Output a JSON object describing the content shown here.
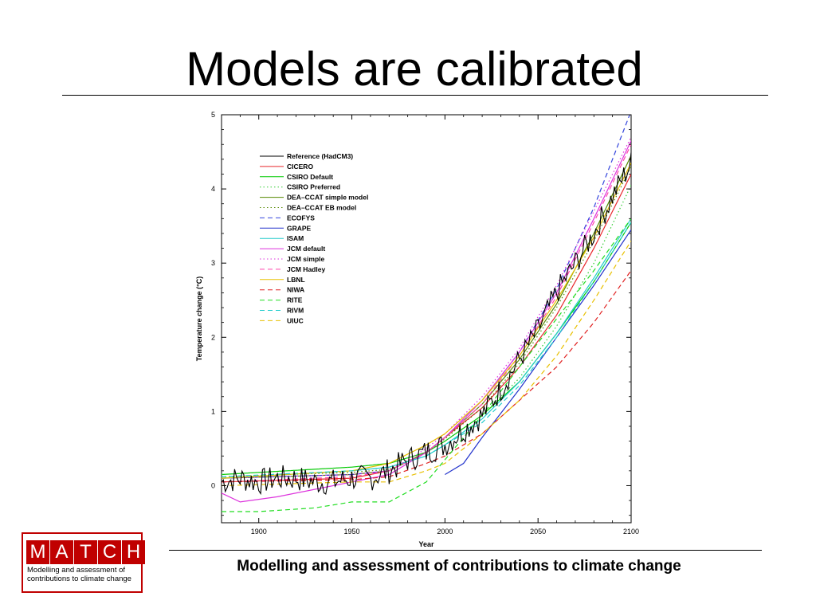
{
  "slide": {
    "title": "Models are calibrated",
    "footer": "Modelling and assessment of contributions to climate change"
  },
  "logo": {
    "letters": [
      "M",
      "A",
      "T",
      "C",
      "H"
    ],
    "subtitle": "Modelling and assessment of contributions to climate change",
    "color": "#c00000"
  },
  "chart_data": {
    "type": "line",
    "title": "",
    "xlabel": "Year",
    "ylabel": "Temperature change (°C)",
    "xlim": [
      1880,
      2100
    ],
    "ylim": [
      -0.5,
      5
    ],
    "x_ticks": [
      1900,
      1950,
      2000,
      2050,
      2100
    ],
    "y_ticks": [
      0,
      1,
      2,
      3,
      4,
      5
    ],
    "grid": false,
    "legend_position": "top-left",
    "series": [
      {
        "name": "Reference (HadCM3)",
        "color": "#000000",
        "dash": "solid",
        "noisy": true,
        "x": [
          1880,
          1890,
          1900,
          1910,
          1920,
          1930,
          1940,
          1950,
          1960,
          1970,
          1980,
          1990,
          2000,
          2010,
          2020,
          2030,
          2040,
          2050,
          2060,
          2070,
          2080,
          2090,
          2100
        ],
        "y": [
          0.05,
          0.1,
          0.05,
          0.1,
          0.1,
          0.05,
          0.05,
          0.1,
          0.1,
          0.2,
          0.35,
          0.45,
          0.55,
          0.75,
          0.95,
          1.3,
          1.7,
          2.1,
          2.6,
          3.0,
          3.4,
          3.9,
          4.35
        ]
      },
      {
        "name": "CICERO",
        "color": "#e8272c",
        "dash": "solid",
        "x": [
          1880,
          1950,
          1970,
          1990,
          2000,
          2020,
          2040,
          2060,
          2080,
          2100
        ],
        "y": [
          0.05,
          0.1,
          0.2,
          0.45,
          0.65,
          1.05,
          1.6,
          2.3,
          3.2,
          4.2
        ]
      },
      {
        "name": "CSIRO Default",
        "color": "#00cc00",
        "dash": "solid",
        "x": [
          1880,
          1950,
          1970,
          1990,
          2000,
          2020,
          2040,
          2060,
          2080,
          2100
        ],
        "y": [
          0.15,
          0.25,
          0.3,
          0.45,
          0.6,
          0.95,
          1.4,
          2.05,
          2.75,
          3.55
        ]
      },
      {
        "name": "CSIRO Preferred",
        "color": "#33cc33",
        "dash": "dotted",
        "x": [
          1880,
          1950,
          1970,
          1990,
          2000,
          2020,
          2040,
          2060,
          2080,
          2100
        ],
        "y": [
          0.15,
          0.25,
          0.3,
          0.45,
          0.6,
          0.95,
          1.45,
          2.15,
          3.0,
          4.05
        ]
      },
      {
        "name": "DEA–CCAT simple model",
        "color": "#558800",
        "dash": "solid",
        "x": [
          1880,
          1950,
          1970,
          1990,
          2000,
          2020,
          2040,
          2060,
          2080,
          2100
        ],
        "y": [
          0.1,
          0.15,
          0.2,
          0.45,
          0.65,
          1.1,
          1.7,
          2.45,
          3.4,
          4.45
        ]
      },
      {
        "name": "DEA–CCAT EB model",
        "color": "#558800",
        "dash": "dotted",
        "x": [
          1880,
          1950,
          1970,
          1990,
          2000,
          2020,
          2040,
          2060,
          2080,
          2100
        ],
        "y": [
          0.12,
          0.18,
          0.22,
          0.45,
          0.63,
          1.05,
          1.65,
          2.4,
          3.3,
          4.3
        ]
      },
      {
        "name": "ECOFYS",
        "color": "#3344dd",
        "dash": "dashed",
        "x": [
          1880,
          1950,
          1970,
          1990,
          2000,
          2020,
          2040,
          2060,
          2080,
          2100
        ],
        "y": [
          0.1,
          0.15,
          0.2,
          0.45,
          0.65,
          1.15,
          1.8,
          2.65,
          3.75,
          5.05
        ]
      },
      {
        "name": "GRAPE",
        "color": "#2233cc",
        "dash": "solid",
        "x": [
          2000,
          2010,
          2020,
          2040,
          2060,
          2080,
          2100
        ],
        "y": [
          0.15,
          0.3,
          0.65,
          1.3,
          2.0,
          2.7,
          3.45
        ]
      },
      {
        "name": "ISAM",
        "color": "#22cccc",
        "dash": "solid",
        "x": [
          1880,
          1950,
          1970,
          1990,
          2000,
          2020,
          2040,
          2060,
          2080,
          2100
        ],
        "y": [
          0.1,
          0.2,
          0.25,
          0.4,
          0.55,
          0.9,
          1.4,
          2.05,
          2.8,
          3.6
        ]
      },
      {
        "name": "JCM default",
        "color": "#dd33dd",
        "dash": "solid",
        "x": [
          1880,
          1890,
          1910,
          1930,
          1950,
          1970,
          1990,
          2000,
          2020,
          2040,
          2060,
          2080,
          2100
        ],
        "y": [
          -0.1,
          -0.22,
          -0.15,
          -0.05,
          0.05,
          0.15,
          0.45,
          0.65,
          1.15,
          1.8,
          2.6,
          3.6,
          4.65
        ]
      },
      {
        "name": "JCM simple",
        "color": "#dd33dd",
        "dash": "dotted",
        "x": [
          1880,
          1950,
          1970,
          1990,
          2000,
          2020,
          2040,
          2060,
          2080,
          2100
        ],
        "y": [
          0.1,
          0.15,
          0.2,
          0.5,
          0.7,
          1.2,
          1.85,
          2.7,
          3.7,
          4.7
        ]
      },
      {
        "name": "JCM Hadley",
        "color": "#ff44aa",
        "dash": "dashed",
        "x": [
          1880,
          1950,
          1970,
          1990,
          2000,
          2020,
          2040,
          2060,
          2080,
          2100
        ],
        "y": [
          0.05,
          0.12,
          0.2,
          0.45,
          0.65,
          1.1,
          1.75,
          2.55,
          3.55,
          4.6
        ]
      },
      {
        "name": "LBNL",
        "color": "#e8c000",
        "dash": "solid",
        "x": [
          1880,
          1950,
          1970,
          1990,
          2000,
          2020,
          2040,
          2060,
          2080,
          2100
        ],
        "y": [
          0.1,
          0.2,
          0.3,
          0.55,
          0.7,
          1.15,
          1.75,
          2.5,
          3.35,
          4.35
        ]
      },
      {
        "name": "NIWA",
        "color": "#e02020",
        "dash": "dashed",
        "x": [
          1880,
          1950,
          1970,
          1990,
          2000,
          2020,
          2040,
          2060,
          2080,
          2100
        ],
        "y": [
          0.05,
          0.08,
          0.12,
          0.3,
          0.4,
          0.7,
          1.15,
          1.6,
          2.2,
          2.9
        ]
      },
      {
        "name": "RITE",
        "color": "#22dd22",
        "dash": "dashed",
        "x": [
          1880,
          1900,
          1930,
          1950,
          1970,
          1990,
          2000,
          2020,
          2040,
          2060,
          2080,
          2100
        ],
        "y": [
          -0.35,
          -0.35,
          -0.3,
          -0.22,
          -0.22,
          0.05,
          0.35,
          0.95,
          1.6,
          2.25,
          2.9,
          3.6
        ]
      },
      {
        "name": "RIVM",
        "color": "#22cccc",
        "dash": "dashed",
        "x": [
          1880,
          1950,
          1970,
          1990,
          2000,
          2020,
          2040,
          2060,
          2080,
          2100
        ],
        "y": [
          0.12,
          0.2,
          0.25,
          0.4,
          0.55,
          0.85,
          1.35,
          2.0,
          2.75,
          3.55
        ]
      },
      {
        "name": "UIUC",
        "color": "#e8c000",
        "dash": "dashed",
        "x": [
          1880,
          1950,
          1970,
          1990,
          2000,
          2020,
          2040,
          2060,
          2080,
          2100
        ],
        "y": [
          0.0,
          0.05,
          0.05,
          0.2,
          0.3,
          0.7,
          1.15,
          1.75,
          2.5,
          3.3
        ]
      }
    ]
  }
}
